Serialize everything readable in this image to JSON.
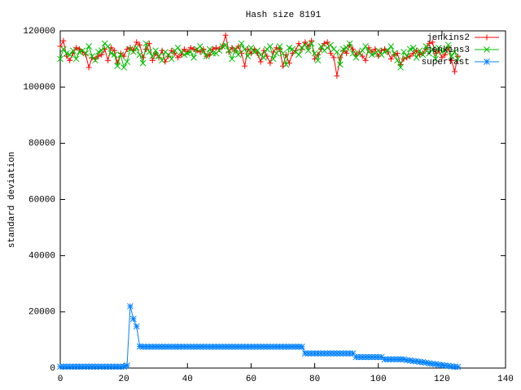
{
  "chart_data": {
    "type": "line",
    "title": "Hash size 8191",
    "y_label": "standard deviation",
    "x": [
      0,
      1,
      2,
      3,
      4,
      5,
      6,
      7,
      8,
      9,
      10,
      11,
      12,
      13,
      14,
      15,
      16,
      17,
      18,
      19,
      20,
      21,
      22,
      23,
      24,
      25,
      26,
      27,
      28,
      29,
      30,
      31,
      32,
      33,
      34,
      35,
      36,
      37,
      38,
      39,
      40,
      41,
      42,
      43,
      44,
      45,
      46,
      47,
      48,
      49,
      50,
      51,
      52,
      53,
      54,
      55,
      56,
      57,
      58,
      59,
      60,
      61,
      62,
      63,
      64,
      65,
      66,
      67,
      68,
      69,
      70,
      71,
      72,
      73,
      74,
      75,
      76,
      77,
      78,
      79,
      80,
      81,
      82,
      83,
      84,
      85,
      86,
      87,
      88,
      89,
      90,
      91,
      92,
      93,
      94,
      95,
      96,
      97,
      98,
      99,
      100,
      101,
      102,
      103,
      104,
      105,
      106,
      107,
      108,
      109,
      110,
      111,
      112,
      113,
      114,
      115,
      116,
      117,
      118,
      119,
      120,
      121,
      122,
      123,
      124,
      125
    ],
    "series": [
      {
        "name": "jenkins2",
        "color": "#ff0000",
        "values": [
          114500,
          116500,
          111000,
          109500,
          112000,
          114000,
          113500,
          112500,
          111500,
          107000,
          110500,
          110000,
          111000,
          111500,
          113500,
          109500,
          114000,
          113000,
          108500,
          112000,
          111000,
          113500,
          114000,
          113000,
          116000,
          115000,
          110500,
          113500,
          115500,
          109500,
          112000,
          110500,
          113000,
          109000,
          111000,
          113000,
          112000,
          110500,
          111500,
          113500,
          112500,
          114000,
          113500,
          113000,
          112500,
          113500,
          111000,
          111500,
          113500,
          114000,
          113500,
          114500,
          118500,
          112500,
          114000,
          113000,
          114500,
          112000,
          107500,
          113500,
          112000,
          113500,
          112000,
          109000,
          113000,
          111000,
          108500,
          112500,
          114000,
          113500,
          107500,
          111500,
          108500,
          112000,
          113000,
          115500,
          113500,
          116000,
          114500,
          116500,
          110000,
          111500,
          113500,
          115500,
          116000,
          112000,
          110500,
          104000,
          110500,
          113000,
          112000,
          115000,
          113500,
          111500,
          112500,
          111000,
          109500,
          114000,
          112500,
          113500,
          111000,
          113000,
          113500,
          112500,
          110000,
          111500,
          112000,
          108000,
          110000,
          110500,
          111000,
          112000,
          113000,
          111500,
          112000,
          113500,
          115500,
          116000,
          112000,
          113000,
          110500,
          111500,
          114000,
          109500,
          105500,
          111000
        ]
      },
      {
        "name": "jenkins3",
        "color": "#00c000",
        "values": [
          110000,
          113500,
          112000,
          111500,
          113000,
          110000,
          112500,
          113000,
          112000,
          114500,
          111000,
          109500,
          112500,
          113000,
          115500,
          114500,
          112000,
          111500,
          107500,
          111500,
          107000,
          109000,
          113500,
          112500,
          114000,
          111500,
          108500,
          115500,
          112500,
          111000,
          113000,
          111000,
          109500,
          112500,
          111500,
          110000,
          113000,
          114000,
          112500,
          111500,
          112000,
          112500,
          110500,
          113500,
          114500,
          112500,
          111000,
          113500,
          112000,
          112000,
          113000,
          114500,
          115000,
          113000,
          110000,
          113500,
          111500,
          115500,
          113500,
          111000,
          114000,
          112500,
          113000,
          111500,
          110500,
          113500,
          114500,
          110000,
          112000,
          114500,
          112000,
          108000,
          114000,
          113500,
          112500,
          111500,
          114000,
          115000,
          113000,
          115500,
          112000,
          109500,
          114500,
          113000,
          114000,
          115000,
          113500,
          112500,
          108000,
          113500,
          114000,
          115500,
          112000,
          110500,
          112000,
          113000,
          114500,
          112500,
          111500,
          112000,
          113000,
          111500,
          112500,
          113000,
          114500,
          112000,
          109500,
          107000,
          112500,
          111000,
          113500,
          114000,
          110500,
          113000,
          111500,
          114500,
          112000,
          113500,
          110000,
          114000,
          112500,
          113000,
          115000,
          111000,
          112500,
          110000
        ]
      },
      {
        "name": "superfast",
        "color": "#0080ff",
        "values": [
          500,
          500,
          500,
          500,
          500,
          500,
          500,
          500,
          500,
          500,
          500,
          500,
          500,
          500,
          500,
          500,
          500,
          500,
          500,
          500,
          500,
          900,
          22000,
          17500,
          14800,
          7700,
          7600,
          7600,
          7600,
          7600,
          7600,
          7600,
          7600,
          7600,
          7600,
          7600,
          7600,
          7600,
          7600,
          7600,
          7600,
          7600,
          7600,
          7600,
          7600,
          7600,
          7600,
          7600,
          7600,
          7600,
          7600,
          7600,
          7600,
          7600,
          7600,
          7600,
          7600,
          7600,
          7600,
          7600,
          7600,
          7600,
          7600,
          7600,
          7600,
          7600,
          7600,
          7600,
          7600,
          7600,
          7600,
          7600,
          7600,
          7600,
          7600,
          7600,
          7600,
          5200,
          5200,
          5200,
          5200,
          5200,
          5200,
          5200,
          5200,
          5200,
          5200,
          5200,
          5200,
          5200,
          5200,
          5200,
          5200,
          3900,
          3900,
          3900,
          3900,
          3900,
          3900,
          3900,
          3900,
          3900,
          3100,
          3100,
          3100,
          3100,
          3100,
          3100,
          3100,
          2800,
          2700,
          2500,
          2400,
          2200,
          2100,
          1900,
          1700,
          1500,
          1400,
          1200,
          1100,
          900,
          800,
          600,
          500,
          400
        ]
      }
    ],
    "xlim": [
      0,
      140
    ],
    "xticks": [
      0,
      20,
      40,
      60,
      80,
      100,
      120,
      140
    ],
    "ylim": [
      0,
      120000
    ],
    "yticks": [
      0,
      20000,
      40000,
      60000,
      80000,
      100000,
      120000
    ],
    "legend": "top-right"
  }
}
